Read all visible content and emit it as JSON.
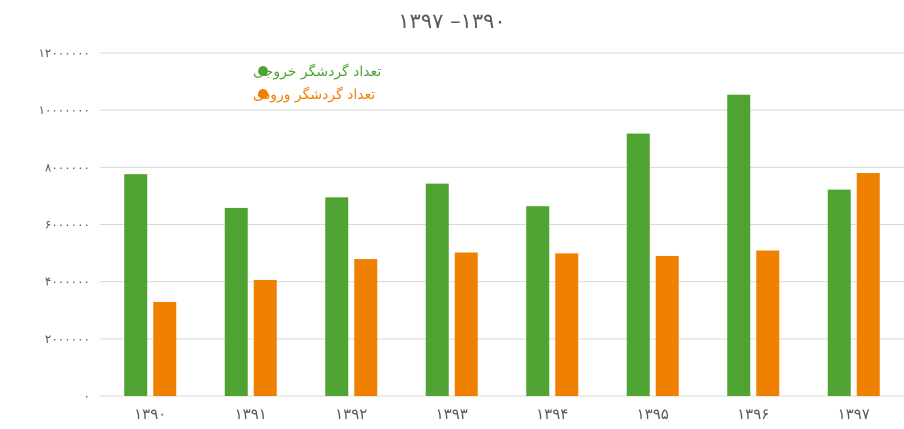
{
  "chart_data": {
    "type": "bar",
    "title": "۱۳۹۷ –۱۳۹۰",
    "categories": [
      "۱۳۹۰",
      "۱۳۹۱",
      "۱۳۹۲",
      "۱۳۹۳",
      "۱۳۹۴",
      "۱۳۹۵",
      "۱۳۹۶",
      "۱۳۹۷"
    ],
    "series": [
      {
        "name": "تعداد گردشگر خروجی",
        "color": "#4ea333",
        "values": [
          7760000,
          6580000,
          6950000,
          7430000,
          6640000,
          9180000,
          10540000,
          7220000
        ]
      },
      {
        "name": "تعداد گردشگر ورودی",
        "color": "#f08000",
        "values": [
          3290000,
          4060000,
          4790000,
          5020000,
          4990000,
          4900000,
          5090000,
          7800000
        ]
      }
    ],
    "ylim": [
      0,
      12000000
    ],
    "y_ticks": [
      0,
      2000000,
      4000000,
      6000000,
      8000000,
      10000000,
      12000000
    ],
    "y_tick_labels": [
      "۰",
      "۲۰۰۰۰۰۰",
      "۴۰۰۰۰۰۰",
      "۶۰۰۰۰۰۰",
      "۸۰۰۰۰۰۰",
      "۱۰۰۰۰۰۰۰",
      "۱۲۰۰۰۰۰۰"
    ],
    "xlabel": "",
    "ylabel": "",
    "grid": true,
    "legend_position": "top-left",
    "gridline_color": "#d9d9d9"
  }
}
